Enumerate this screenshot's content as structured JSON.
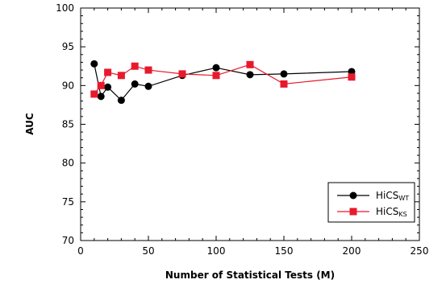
{
  "chart_data": {
    "type": "line",
    "xlabel": "Number of Statistical Tests (M)",
    "ylabel": "AUC",
    "xlim": [
      0,
      250
    ],
    "ylim": [
      70,
      100
    ],
    "xticks": [
      0,
      50,
      100,
      150,
      200,
      250
    ],
    "yticks": [
      70,
      75,
      80,
      85,
      90,
      95,
      100
    ],
    "grid": false,
    "legend_position": "bottom-right",
    "series": [
      {
        "name": "HiCS",
        "name_subscript": "WT",
        "color": "#000000",
        "marker": "circle",
        "x": [
          10,
          15,
          20,
          30,
          40,
          50,
          75,
          100,
          125,
          150,
          200
        ],
        "y": [
          92.8,
          88.6,
          89.8,
          88.1,
          90.2,
          89.9,
          91.3,
          92.3,
          91.4,
          91.5,
          91.8
        ]
      },
      {
        "name": "HiCS",
        "name_subscript": "KS",
        "color": "#e8192c",
        "marker": "square",
        "x": [
          10,
          15,
          20,
          30,
          40,
          50,
          75,
          100,
          125,
          150,
          200
        ],
        "y": [
          88.9,
          90.0,
          91.7,
          91.3,
          92.5,
          92.0,
          91.5,
          91.3,
          92.7,
          90.2,
          91.1
        ]
      }
    ]
  }
}
